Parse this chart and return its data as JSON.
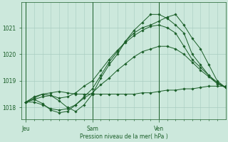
{
  "xlabel": "Pression niveau de la mer( hPa )",
  "bg_color": "#cce8dc",
  "grid_color": "#a8ccc0",
  "line_color": "#1a5e28",
  "yticks": [
    1018,
    1019,
    1020,
    1021
  ],
  "ylim": [
    1017.55,
    1021.95
  ],
  "xtick_labels": [
    "Jeu",
    "Sam",
    "Ven"
  ],
  "xtick_positions": [
    0,
    16,
    32
  ],
  "minor_xtick_positions": [
    2,
    4,
    6,
    8,
    10,
    12,
    14,
    18,
    20,
    22,
    24,
    26,
    28,
    30,
    34,
    36,
    38,
    40,
    42,
    44,
    46
  ],
  "vlines": [
    0,
    16,
    32
  ],
  "xlim": [
    -1,
    48
  ],
  "series": [
    {
      "x": [
        0,
        2,
        4,
        6,
        8,
        10,
        12,
        14,
        16,
        18,
        20,
        22,
        24,
        26,
        28,
        30,
        32,
        34,
        36,
        38,
        40,
        42,
        44,
        46,
        48
      ],
      "y": [
        1018.2,
        1018.4,
        1018.5,
        1018.45,
        1018.25,
        1018.0,
        1017.85,
        1018.1,
        1018.5,
        1019.1,
        1019.6,
        1020.0,
        1020.5,
        1020.9,
        1021.2,
        1021.5,
        1021.5,
        1021.35,
        1021.1,
        1020.8,
        1020.0,
        1019.6,
        1019.2,
        1018.9,
        1018.75
      ]
    },
    {
      "x": [
        0,
        2,
        4,
        6,
        8,
        10,
        12,
        14,
        16,
        18,
        20,
        22,
        24,
        26,
        28,
        30,
        32,
        34,
        36,
        38,
        40,
        42,
        44,
        46,
        48
      ],
      "y": [
        1018.2,
        1018.3,
        1018.15,
        1017.9,
        1017.8,
        1017.85,
        1018.1,
        1018.4,
        1018.7,
        1019.2,
        1019.7,
        1020.1,
        1020.5,
        1020.8,
        1021.0,
        1021.1,
        1021.25,
        1021.4,
        1021.5,
        1021.1,
        1020.6,
        1020.2,
        1019.6,
        1019.0,
        1018.75
      ]
    },
    {
      "x": [
        0,
        2,
        4,
        6,
        8,
        10,
        12,
        14,
        16,
        18,
        20,
        22,
        24,
        26,
        28,
        30,
        32,
        34,
        36,
        38,
        40,
        42,
        44,
        46,
        48
      ],
      "y": [
        1018.2,
        1018.35,
        1018.5,
        1018.55,
        1018.6,
        1018.55,
        1018.5,
        1018.5,
        1018.5,
        1018.5,
        1018.5,
        1018.5,
        1018.5,
        1018.5,
        1018.55,
        1018.55,
        1018.6,
        1018.65,
        1018.65,
        1018.7,
        1018.7,
        1018.75,
        1018.8,
        1018.8,
        1018.8
      ]
    },
    {
      "x": [
        0,
        2,
        4,
        6,
        8,
        10,
        12,
        14,
        16,
        18,
        20,
        22,
        24,
        26,
        28,
        30,
        32,
        34,
        36,
        38,
        40,
        42,
        44,
        46,
        48
      ],
      "y": [
        1018.2,
        1018.3,
        1018.4,
        1018.45,
        1018.35,
        1018.4,
        1018.55,
        1018.8,
        1019.0,
        1019.4,
        1019.8,
        1020.15,
        1020.45,
        1020.7,
        1020.9,
        1021.05,
        1021.1,
        1021.0,
        1020.8,
        1020.3,
        1019.8,
        1019.5,
        1019.2,
        1018.95,
        1018.75
      ]
    },
    {
      "x": [
        0,
        2,
        4,
        6,
        8,
        10,
        12,
        14,
        16,
        18,
        20,
        22,
        24,
        26,
        28,
        30,
        32,
        34,
        36,
        38,
        40,
        42,
        44,
        46,
        48
      ],
      "y": [
        1018.2,
        1018.2,
        1018.1,
        1017.95,
        1017.9,
        1017.95,
        1018.1,
        1018.35,
        1018.55,
        1018.85,
        1019.1,
        1019.4,
        1019.65,
        1019.9,
        1020.1,
        1020.2,
        1020.3,
        1020.3,
        1020.2,
        1020.0,
        1019.7,
        1019.4,
        1019.15,
        1018.9,
        1018.75
      ]
    }
  ]
}
